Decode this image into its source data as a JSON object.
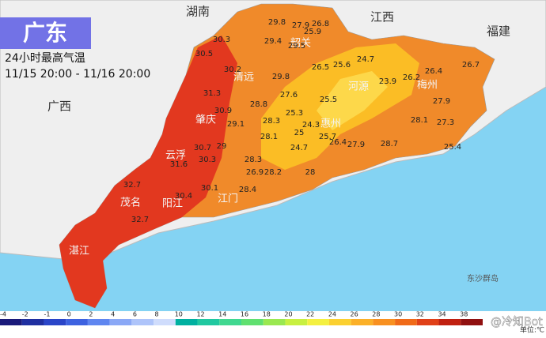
{
  "header": {
    "title": "广东",
    "subtitle": "24小时最高气温",
    "period": "11/15 20:00 - 11/16 20:00"
  },
  "regions": [
    "湖南",
    "江西",
    "福建",
    "广西"
  ],
  "cities": [
    "清远",
    "肇庆",
    "云浮",
    "茂名",
    "阳江",
    "江门",
    "湛江",
    "河源",
    "梅州",
    "惠州",
    "韶关",
    "东沙群岛"
  ],
  "stations": [
    29.8,
    27.9,
    26.8,
    25.9,
    30.3,
    29.4,
    29.5,
    30.5,
    30.2,
    29.8,
    26.5,
    25.6,
    24.7,
    26.2,
    26.4,
    23.9,
    26.7,
    31.3,
    27.6,
    25.5,
    28.8,
    27.9,
    30.9,
    28.3,
    25.3,
    24.3,
    25,
    28.1,
    27.3,
    29.1,
    28.1,
    25.7,
    26.4,
    27.9,
    28.7,
    30.7,
    29,
    24.7,
    25.4,
    31.6,
    30.3,
    28.3,
    26.9,
    28.2,
    28,
    32.7,
    30.1,
    28.4,
    30.4,
    32.7
  ],
  "legend": {
    "ticks": [
      -4,
      -2,
      -1,
      0,
      2,
      4,
      6,
      8,
      10,
      12,
      14,
      16,
      18,
      20,
      22,
      24,
      26,
      28,
      30,
      32,
      34,
      38
    ],
    "unit": "单位:℃"
  },
  "watermark": "@冷知Bot"
}
